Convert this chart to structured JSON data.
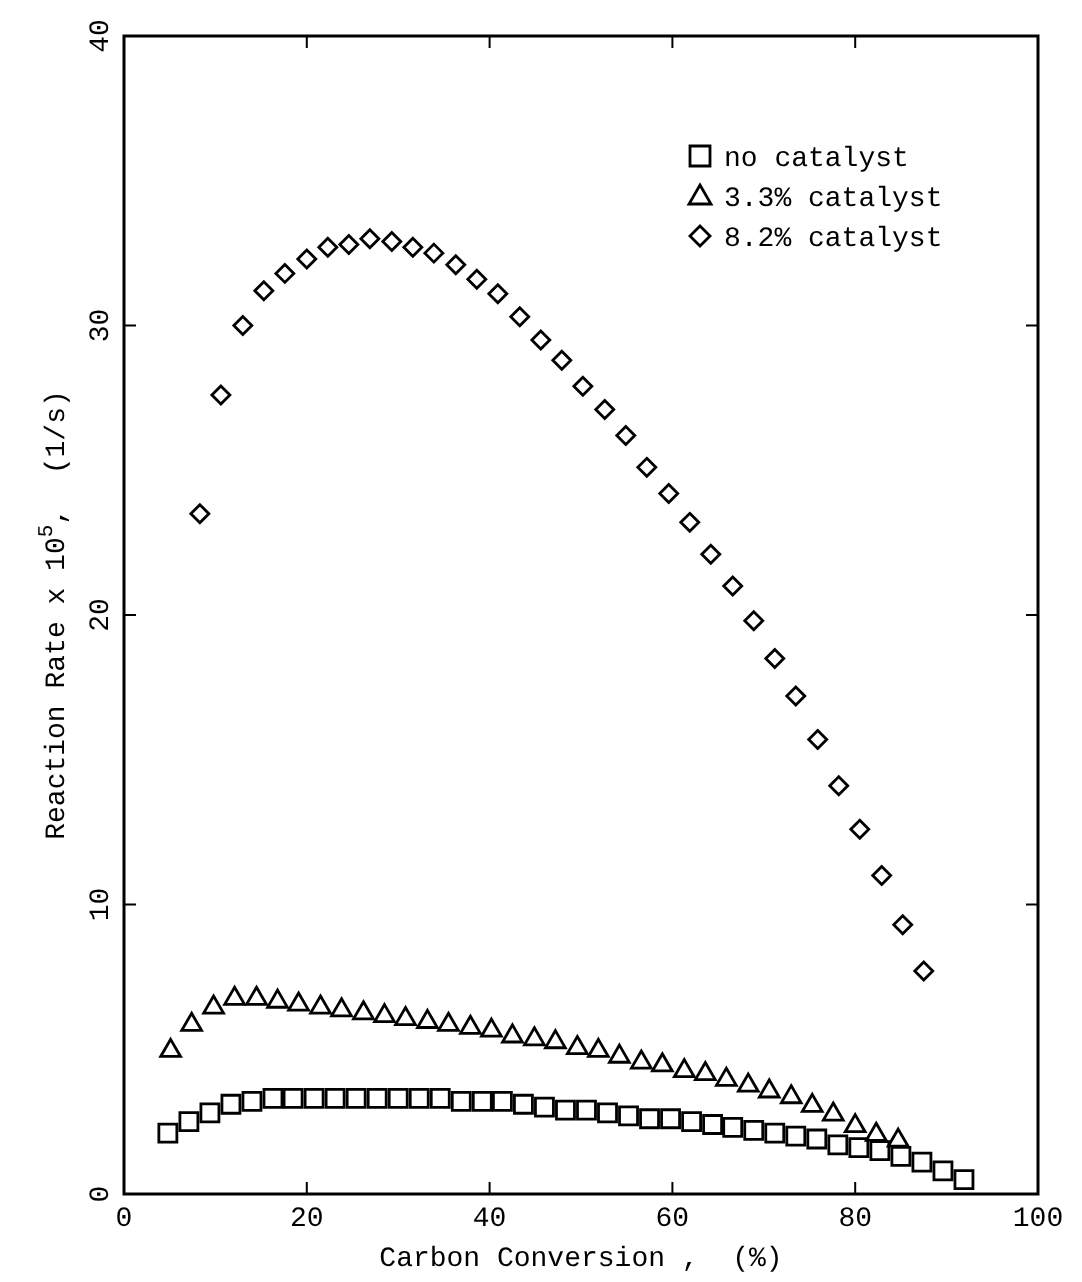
{
  "chart_data": {
    "type": "scatter",
    "xlabel": "Carbon Conversion ,  (%)",
    "ylabel": "Reaction Rate x 10$^{5}$,  (1/s)",
    "xlim": [
      0,
      100
    ],
    "ylim": [
      0,
      40
    ],
    "xticks": [
      0,
      20,
      40,
      60,
      80,
      100
    ],
    "yticks": [
      0,
      10,
      20,
      30,
      40
    ],
    "grid": false,
    "legend": "top right",
    "series": [
      {
        "name": "no catalyst",
        "color": "#000000",
        "marker": "square",
        "x": [
          4.8,
          7.1,
          9.4,
          11.7,
          14.0,
          16.3,
          18.5,
          20.8,
          23.1,
          25.4,
          27.7,
          30.0,
          32.3,
          34.6,
          36.9,
          39.2,
          41.4,
          43.7,
          46.0,
          48.3,
          50.6,
          52.9,
          55.2,
          57.5,
          59.8,
          62.1,
          64.4,
          66.6,
          68.9,
          71.2,
          73.5,
          75.8,
          78.1,
          80.4,
          82.7,
          85.0,
          87.3,
          89.6,
          91.9
        ],
        "values": [
          2.1,
          2.5,
          2.8,
          3.1,
          3.2,
          3.3,
          3.3,
          3.3,
          3.3,
          3.3,
          3.3,
          3.3,
          3.3,
          3.3,
          3.2,
          3.2,
          3.2,
          3.1,
          3.0,
          2.9,
          2.9,
          2.8,
          2.7,
          2.6,
          2.6,
          2.5,
          2.4,
          2.3,
          2.2,
          2.1,
          2.0,
          1.9,
          1.7,
          1.6,
          1.5,
          1.3,
          1.1,
          0.8,
          0.5
        ]
      },
      {
        "name": "3.3% catalyst",
        "color": "#000000",
        "marker": "triangle",
        "x": [
          5.1,
          7.4,
          9.8,
          12.1,
          14.5,
          16.8,
          19.1,
          21.5,
          23.8,
          26.2,
          28.5,
          30.8,
          33.2,
          35.5,
          37.9,
          40.2,
          42.5,
          44.9,
          47.2,
          49.6,
          51.9,
          54.2,
          56.6,
          58.9,
          61.3,
          63.6,
          65.9,
          68.3,
          70.6,
          73.0,
          75.3,
          77.6,
          80.0,
          82.3,
          84.7
        ],
        "values": [
          5.0,
          5.9,
          6.5,
          6.8,
          6.8,
          6.7,
          6.6,
          6.5,
          6.4,
          6.3,
          6.2,
          6.1,
          6.0,
          5.9,
          5.8,
          5.7,
          5.5,
          5.4,
          5.3,
          5.1,
          5.0,
          4.8,
          4.6,
          4.5,
          4.3,
          4.2,
          4.0,
          3.8,
          3.6,
          3.4,
          3.1,
          2.8,
          2.4,
          2.1,
          1.9
        ]
      },
      {
        "name": "8.2% catalyst",
        "color": "#000000",
        "marker": "diamond",
        "x": [
          8.3,
          10.6,
          13.0,
          15.3,
          17.6,
          20.0,
          22.3,
          24.6,
          26.9,
          29.3,
          31.6,
          33.9,
          36.3,
          38.6,
          40.9,
          43.3,
          45.6,
          47.9,
          50.2,
          52.6,
          54.9,
          57.2,
          59.6,
          61.9,
          64.2,
          66.6,
          68.9,
          71.2,
          73.5,
          75.9,
          78.2,
          80.5,
          82.9,
          85.2,
          87.5
        ],
        "values": [
          23.5,
          27.6,
          30.0,
          31.2,
          31.8,
          32.3,
          32.7,
          32.8,
          33.0,
          32.9,
          32.7,
          32.5,
          32.1,
          31.6,
          31.1,
          30.3,
          29.5,
          28.8,
          27.9,
          27.1,
          26.2,
          25.1,
          24.2,
          23.2,
          22.1,
          21.0,
          19.8,
          18.5,
          17.2,
          15.7,
          14.1,
          12.6,
          11.0,
          9.3,
          7.7
        ]
      }
    ]
  }
}
